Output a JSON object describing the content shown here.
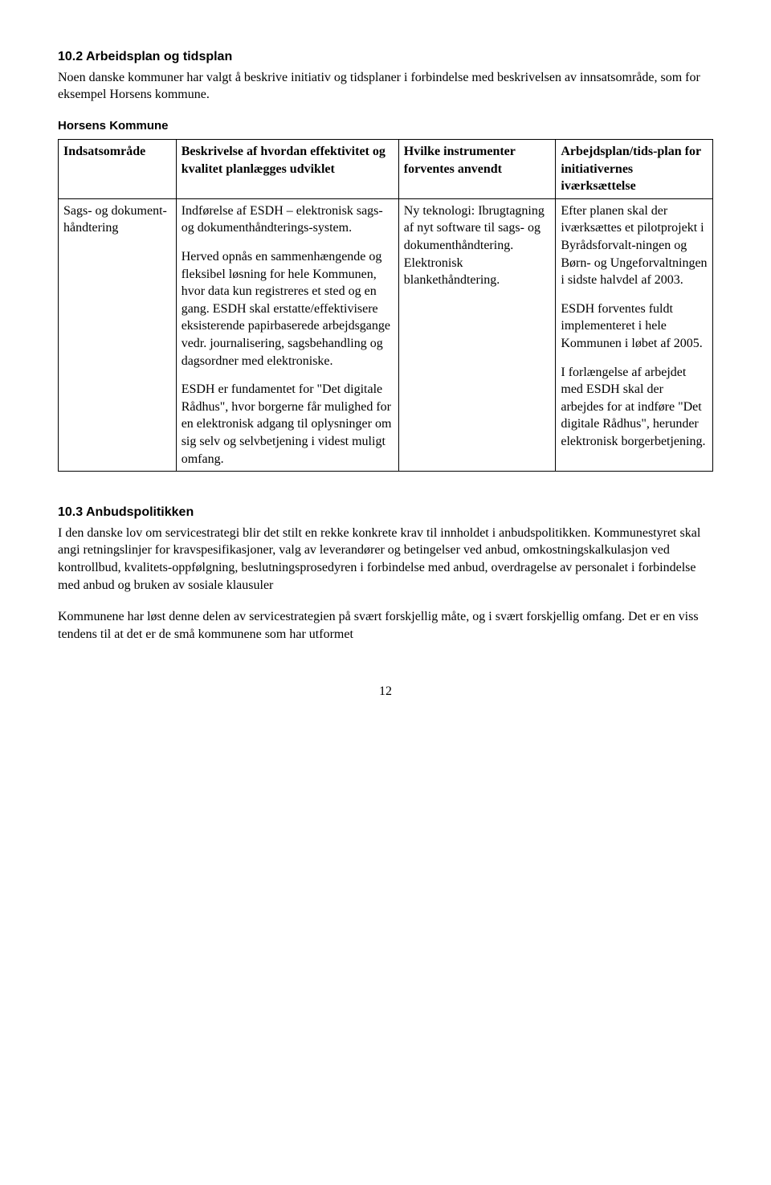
{
  "section1": {
    "heading": "10.2   Arbeidsplan og tidsplan",
    "intro": "Noen danske kommuner har valgt å beskrive initiativ og tidsplaner i forbindelse med beskrivelsen av innsatsområde, som for eksempel Horsens kommune.",
    "subheading": "Horsens Kommune"
  },
  "table": {
    "headers": [
      "Indsatsområde",
      "Beskrivelse af hvordan effektivitet og kvalitet planlægges udviklet",
      "Hvilke instrumenter forventes anvendt",
      "Arbejdsplan/tids-plan for initiativernes iværksættelse"
    ],
    "row": {
      "c1": "Sags- og dokument-håndtering",
      "c2": {
        "p1": "Indførelse af ESDH – elektronisk sags- og dokumenthåndterings-system.",
        "p2": "Herved opnås en sammenhængende og fleksibel løsning for hele Kommunen, hvor data  kun registreres et sted og en gang. ESDH skal erstatte/effektivisere eksisterende papirbaserede arbejdsgange vedr. journalisering, sagsbehandling og dagsordner med elektroniske.",
        "p3": "ESDH er fundamentet for \"Det digitale Rådhus\", hvor borgerne får mulighed for en elektronisk adgang til oplysninger om sig selv og selvbetjening i videst muligt omfang."
      },
      "c3": "Ny teknologi: Ibrugtagning af nyt software til sags- og dokumenthåndtering. Elektronisk blankethåndtering.",
      "c4": {
        "p1": "Efter planen skal der iværksættes et pilotprojekt i Byrådsforvalt-ningen og Børn- og Ungeforvaltningen i sidste halvdel af 2003.",
        "p2": "ESDH forventes fuldt implementeret i hele Kommunen i løbet af 2005.",
        "p3": "I forlængelse af arbejdet med ESDH skal der arbejdes for at indføre \"Det digitale Rådhus\", herunder elektronisk borgerbetjening."
      }
    }
  },
  "section2": {
    "heading": "10.3   Anbudspolitikken",
    "p1": "I den danske lov om servicestrategi blir det stilt en rekke konkrete krav til innholdet i anbudspolitikken. Kommunestyret skal angi retningslinjer for kravspesifikasjoner, valg av leverandører og betingelser ved anbud, omkostningskalkulasjon ved kontrollbud, kvalitets-oppfølgning, beslutningsprosedyren i forbindelse med anbud, overdragelse av personalet i forbindelse med anbud og bruken av sosiale klausuler",
    "p2": "Kommunene har løst denne delen av servicestrategien på svært forskjellig måte, og i svært forskjellig omfang. Det er en viss tendens til at det er de små kommunene som har utformet"
  },
  "page_number": "12"
}
